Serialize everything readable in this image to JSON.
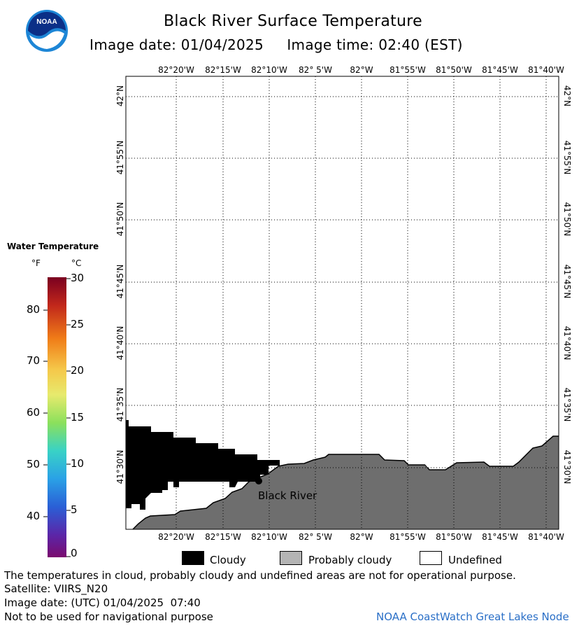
{
  "header": {
    "title": "Black River Surface Temperature",
    "image_date_label": "Image date: 01/04/2025",
    "image_time_label": "Image time: 02:40 (EST)"
  },
  "logo": {
    "text": "NOAA",
    "icon": "noaa-logo-icon",
    "colors": {
      "outer": "#1d86d6",
      "inner": "#0b2f87",
      "white": "#ffffff"
    }
  },
  "map": {
    "lon_labels_top": [
      "82°20'W",
      "82°15'W",
      "82°10'W",
      "82° 5'W",
      "82°W",
      "81°55'W",
      "81°50'W",
      "81°45'W",
      "81°40'W"
    ],
    "lon_labels_bottom": [
      "82°20'W",
      "82°15'W",
      "82°10'W",
      "82° 5'W",
      "82°W",
      "81°55'W",
      "81°50'W",
      "81°45'W",
      "81°40'W"
    ],
    "lat_labels": [
      "42°N",
      "41°55'N",
      "41°50'N",
      "41°45'N",
      "41°40'N",
      "41°35'N",
      "41°30'N"
    ],
    "place_label": "Black River",
    "colors": {
      "land": "#6e6e6e",
      "cloud": "#000000",
      "grid": "#000000",
      "border": "#000000"
    }
  },
  "legend": {
    "title": "Water Temperature",
    "unit_f": "°F",
    "unit_c": "°C",
    "f_ticks": [
      "80",
      "70",
      "60",
      "50",
      "40"
    ],
    "c_ticks": [
      "30",
      "25",
      "20",
      "15",
      "10",
      "5",
      "0"
    ],
    "colorbar": [
      "#7a0020",
      "#c1271b",
      "#f07d18",
      "#f5c84a",
      "#e7ea6d",
      "#8be05c",
      "#39d2c6",
      "#2aa1e6",
      "#2a5fd6",
      "#5b26a8",
      "#7a0a6e"
    ]
  },
  "key": {
    "cloudy": "Cloudy",
    "probably_cloudy": "Probably cloudy",
    "undefined": "Undefined",
    "colors": {
      "cloudy": "#000000",
      "probably_cloudy": "#b4b4b4",
      "undefined": "#ffffff"
    }
  },
  "footer": {
    "disclaimer": "The temperatures in cloud, probably cloudy and undefined areas are not for operational purpose.",
    "satellite": "Satellite: VIIRS_N20",
    "image_date_utc": "Image date: (UTC) 01/04/2025  07:40",
    "navigation": "Not to be used for navigational purpose",
    "credit": "NOAA CoastWatch Great Lakes Node"
  }
}
